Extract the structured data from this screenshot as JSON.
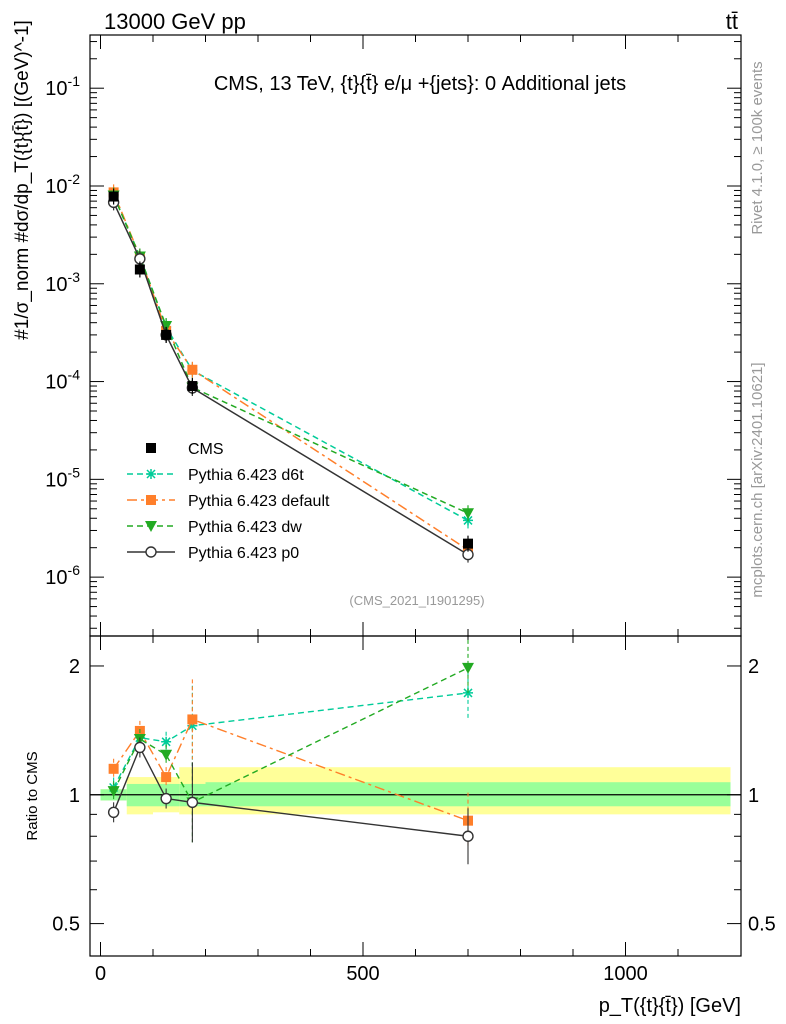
{
  "header": {
    "left": "13000 GeV pp",
    "right": "tt̄"
  },
  "side_labels": {
    "rivet": "Rivet 4.1.0, ≥ 100k events",
    "site": "mcplots.cern.ch [arXiv:2401.10621]"
  },
  "chart_data": [
    {
      "type": "line",
      "panel": "main",
      "title": "CMS, 13 TeV, {t}{t̄} e/μ +{jets}: 0 Additional jets",
      "watermark": "(CMS_2021_I1901295)",
      "ylabel": "#1/σ_norm #dσ/dp_T({t}{t̄}) [(GeV)^-1]",
      "yscale": "log",
      "ylim": [
        2.5e-07,
        0.35
      ],
      "xlim": [
        -20,
        1220
      ],
      "ytick_labels": [
        "10^-6",
        "10^-5",
        "10^-4",
        "10^-3",
        "10^-2",
        "10^-1"
      ],
      "legend_position": "middle-left",
      "x": [
        25,
        75,
        125,
        175,
        700
      ],
      "series": [
        {
          "name": "CMS",
          "color": "#000000",
          "marker": "square",
          "values": [
            0.0078,
            0.0014,
            0.0003,
            9e-05,
            2.2e-06
          ]
        },
        {
          "name": "Pythia 6.423 d6t",
          "color": "#00cc99",
          "marker": "star",
          "dash": "6,4",
          "values": [
            0.0081,
            0.0019,
            0.00036,
            0.00013,
            3.8e-06
          ]
        },
        {
          "name": "Pythia 6.423 default",
          "color": "#ff7f2a",
          "marker": "square",
          "dash": "10,4,3,4",
          "values": [
            0.0086,
            0.0019,
            0.00033,
            0.000132,
            1.9e-06
          ]
        },
        {
          "name": "Pythia 6.423 dw",
          "color": "#22aa22",
          "marker": "triangle-down",
          "dash": "6,4",
          "values": [
            0.008,
            0.0019,
            0.00037,
            8.7e-05,
            4.5e-06
          ]
        },
        {
          "name": "Pythia 6.423 p0",
          "color": "#333333",
          "marker": "circle-open",
          "dash": "",
          "values": [
            0.0068,
            0.0018,
            0.0003,
            8.6e-05,
            1.7e-06
          ]
        }
      ]
    },
    {
      "type": "line",
      "panel": "ratio",
      "ylabel": "Ratio to CMS",
      "xlabel": "p_T({t}{t̄}) [GeV]",
      "yscale": "log",
      "ylim": [
        0.42,
        2.35
      ],
      "xlim": [
        -20,
        1220
      ],
      "xtick_labels": [
        "0",
        "500",
        "1000"
      ],
      "ytick_labels": [
        "0.5",
        "1",
        "2"
      ],
      "x": [
        25,
        75,
        125,
        175,
        700
      ],
      "band_bins": [
        {
          "x0": 0,
          "x1": 50,
          "green": [
            0.97,
            1.03
          ],
          "yellow": [
            0.97,
            1.03
          ]
        },
        {
          "x0": 50,
          "x1": 100,
          "green": [
            0.94,
            1.06
          ],
          "yellow": [
            0.9,
            1.1
          ]
        },
        {
          "x0": 100,
          "x1": 150,
          "green": [
            0.94,
            1.06
          ],
          "yellow": [
            0.91,
            1.1
          ]
        },
        {
          "x0": 150,
          "x1": 200,
          "green": [
            0.94,
            1.06
          ],
          "yellow": [
            0.9,
            1.16
          ]
        },
        {
          "x0": 200,
          "x1": 1200,
          "green": [
            0.94,
            1.07
          ],
          "yellow": [
            0.9,
            1.16
          ]
        }
      ],
      "series": [
        {
          "name": "Pythia 6.423 d6t",
          "color": "#00cc99",
          "marker": "star",
          "dash": "6,4",
          "values": [
            1.04,
            1.36,
            1.33,
            1.45,
            1.73
          ]
        },
        {
          "name": "Pythia 6.423 default",
          "color": "#ff7f2a",
          "marker": "square",
          "dash": "10,4,3,4",
          "values": [
            1.15,
            1.41,
            1.1,
            1.5,
            0.87
          ]
        },
        {
          "name": "Pythia 6.423 dw",
          "color": "#22aa22",
          "marker": "triangle-down",
          "dash": "6,4",
          "values": [
            1.02,
            1.35,
            1.24,
            0.96,
            1.98
          ]
        },
        {
          "name": "Pythia 6.423 p0",
          "color": "#333333",
          "marker": "circle-open",
          "dash": "",
          "values": [
            0.91,
            1.29,
            0.98,
            0.96,
            0.8
          ]
        }
      ]
    }
  ]
}
